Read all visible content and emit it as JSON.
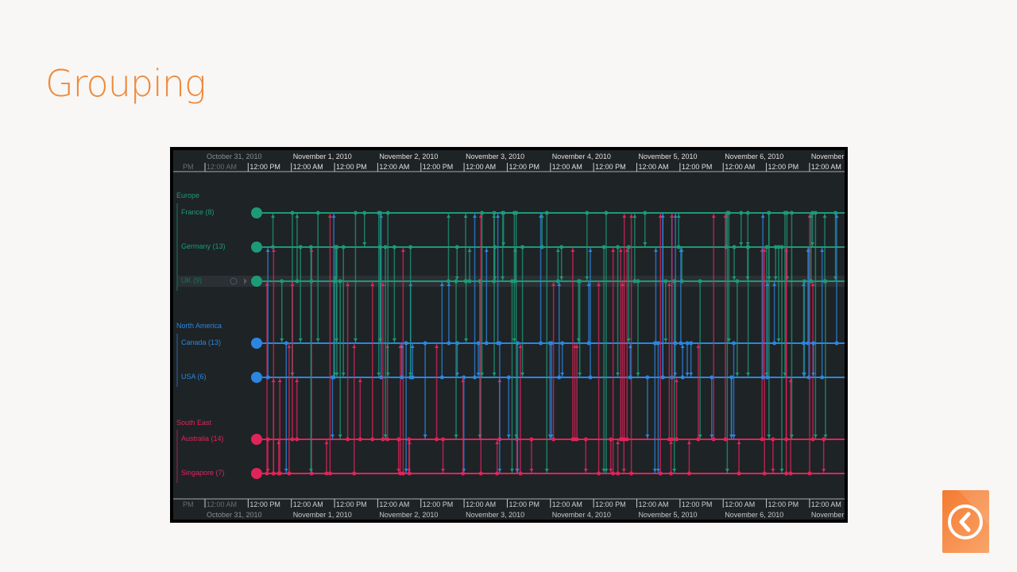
{
  "slide_title": "Grouping",
  "colors": {
    "title": "#ef8a3c",
    "europe": "#1d9a78",
    "north_america": "#2b86e0",
    "south_east": "#e0245a",
    "background": "#1e2326"
  },
  "timeline": {
    "top_dates": [
      "October 31, 2010",
      "November 1, 2010",
      "November 2, 2010",
      "November 3, 2010",
      "November 4, 2010",
      "November 5, 2010",
      "November 6, 2010",
      "November"
    ],
    "time_ticks": [
      "PM",
      "12:00 AM",
      "12:00 PM",
      "12:00 AM",
      "12:00 PM",
      "12:00 AM",
      "12:00 PM",
      "12:00 AM",
      "12:00 PM",
      "12:00 AM",
      "12:00 PM",
      "12:00 AM",
      "12:00 PM",
      "12:00 AM",
      "12:00 PM",
      "12:00 AM"
    ],
    "groups": [
      {
        "name": "Europe",
        "color": "#1d9a78",
        "rows": [
          {
            "label": "France (8)"
          },
          {
            "label": "Germany (13)"
          },
          {
            "label": "UK (9)",
            "hovered": true
          }
        ]
      },
      {
        "name": "North America",
        "color": "#2b86e0",
        "rows": [
          {
            "label": "Canada (13)"
          },
          {
            "label": "USA (6)"
          }
        ]
      },
      {
        "name": "South East",
        "color": "#e0245a",
        "rows": [
          {
            "label": "Australia (14)"
          },
          {
            "label": "Singapore (7)"
          }
        ]
      }
    ]
  },
  "back_button": {
    "icon": "chevron-left-circle-icon"
  }
}
